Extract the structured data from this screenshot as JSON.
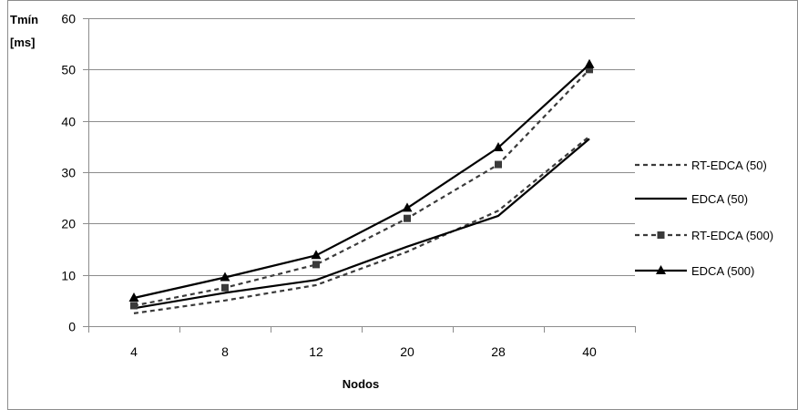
{
  "chart_data": {
    "type": "line",
    "xlabel": "Nodos",
    "ylabel_line1": "Tmín",
    "ylabel_line2": "[ms]",
    "categories": [
      "4",
      "8",
      "12",
      "20",
      "28",
      "40"
    ],
    "ylim": [
      0,
      60
    ],
    "yticks": [
      0,
      10,
      20,
      30,
      40,
      50,
      60
    ],
    "grid": true,
    "legend_position": "right",
    "series": [
      {
        "name": "RT-EDCA (50)",
        "values": [
          2.5,
          5,
          8,
          14.5,
          22.5,
          37
        ],
        "style": "dashed",
        "marker": "none",
        "color": "#3a3a3a"
      },
      {
        "name": "EDCA (50)",
        "values": [
          3.5,
          6.5,
          9,
          15.5,
          21.5,
          36.5
        ],
        "style": "solid",
        "marker": "none",
        "color": "#000000"
      },
      {
        "name": "RT-EDCA (500)",
        "values": [
          4,
          7.5,
          12,
          21,
          31.5,
          50
        ],
        "style": "dashed",
        "marker": "square",
        "color": "#3a3a3a"
      },
      {
        "name": "EDCA (500)",
        "values": [
          5.5,
          9.5,
          13.8,
          23,
          34.8,
          51
        ],
        "style": "solid",
        "marker": "triangle",
        "color": "#000000"
      }
    ]
  }
}
